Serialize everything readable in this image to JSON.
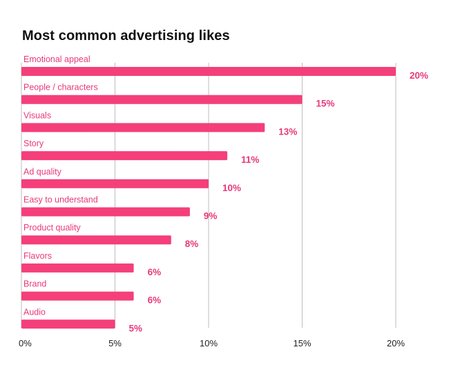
{
  "colors": {
    "bar": "#f43f7a",
    "label": "#e8397a",
    "grid": "#bdbdbd",
    "text": "#111111"
  },
  "chart_data": {
    "type": "bar",
    "orientation": "horizontal",
    "title": "Most common advertising likes",
    "categories": [
      "Emotional appeal",
      "People / characters",
      "Visuals",
      "Story",
      "Ad quality",
      "Easy to understand",
      "Product quality",
      "Flavors",
      "Brand",
      "Audio"
    ],
    "values": [
      20,
      15,
      13,
      11,
      10,
      9,
      8,
      6,
      6,
      5
    ],
    "value_labels": [
      "20%",
      "15%",
      "13%",
      "11%",
      "10%",
      "9%",
      "8%",
      "6%",
      "6%",
      "5%"
    ],
    "xticks": [
      0,
      5,
      10,
      15,
      20
    ],
    "xtick_labels": [
      "0%",
      "5%",
      "10%",
      "15%",
      "20%"
    ],
    "xlim": [
      0,
      20
    ],
    "grid": true,
    "legend": "none"
  }
}
